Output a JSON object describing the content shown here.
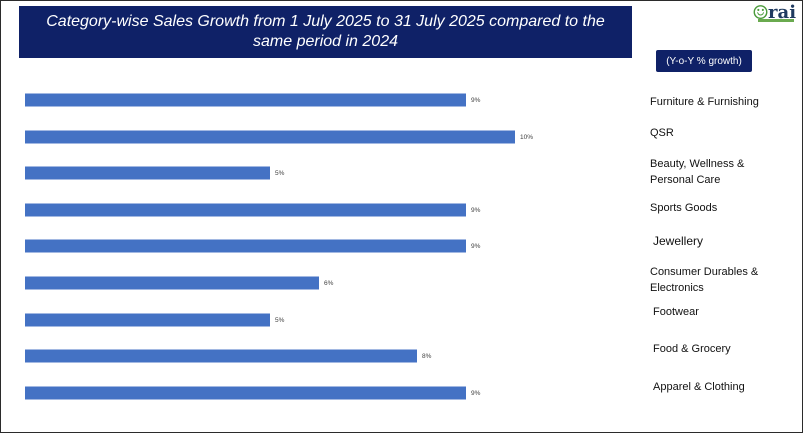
{
  "header": {
    "title": "Category-wise Sales Growth from 1 July 2025 to 31 July 2025 compared to the same period in 2024",
    "subtitle": "(Y-o-Y % growth)",
    "logo_text": "rai",
    "accent_color": "#0f2167",
    "bar_color": "#4472c4"
  },
  "chart_data": {
    "type": "bar",
    "orientation": "horizontal",
    "title": "Category-wise Sales Growth from 1 July 2025 to 31 July 2025 compared to the same period in 2024",
    "subtitle": "(Y-o-Y % growth)",
    "categories": [
      "Furniture & Furnishing",
      "QSR",
      "Beauty, Wellness & Personal Care",
      "Sports Goods",
      "Jewellery",
      "Consumer Durables & Electronics",
      "Footwear",
      "Food & Grocery",
      "Apparel & Clothing"
    ],
    "values": [
      9,
      10,
      5,
      9,
      9,
      6,
      5,
      8,
      9
    ],
    "data_labels": [
      "9%",
      "10%",
      "5%",
      "9%",
      "9%",
      "6%",
      "5%",
      "8%",
      "9%"
    ],
    "unit": "%",
    "xlim": [
      0,
      10
    ],
    "grid": false,
    "legend": "none"
  }
}
